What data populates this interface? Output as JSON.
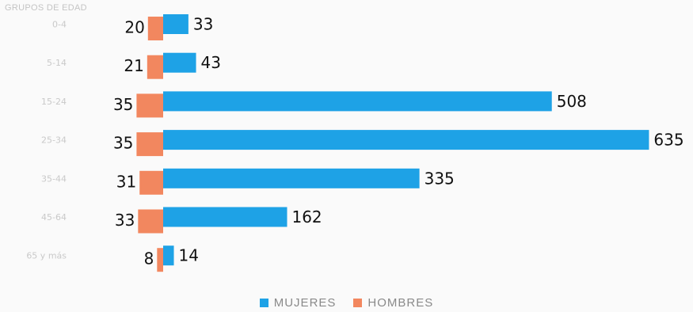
{
  "chart_data": {
    "type": "bar",
    "orientation": "horizontal-butterfly",
    "title": "GRUPOS DE EDAD",
    "categories": [
      "0-4",
      "5-14",
      "15-24",
      "25-34",
      "35-44",
      "45-64",
      "65 y más"
    ],
    "series": [
      {
        "name": "MUJERES",
        "color": "#1ea2e6",
        "values": [
          33,
          43,
          508,
          635,
          335,
          162,
          14
        ]
      },
      {
        "name": "HOMBRES",
        "color": "#f2875f",
        "values": [
          20,
          21,
          35,
          35,
          31,
          33,
          8
        ]
      }
    ],
    "legend_position": "bottom-center",
    "grid": false
  }
}
